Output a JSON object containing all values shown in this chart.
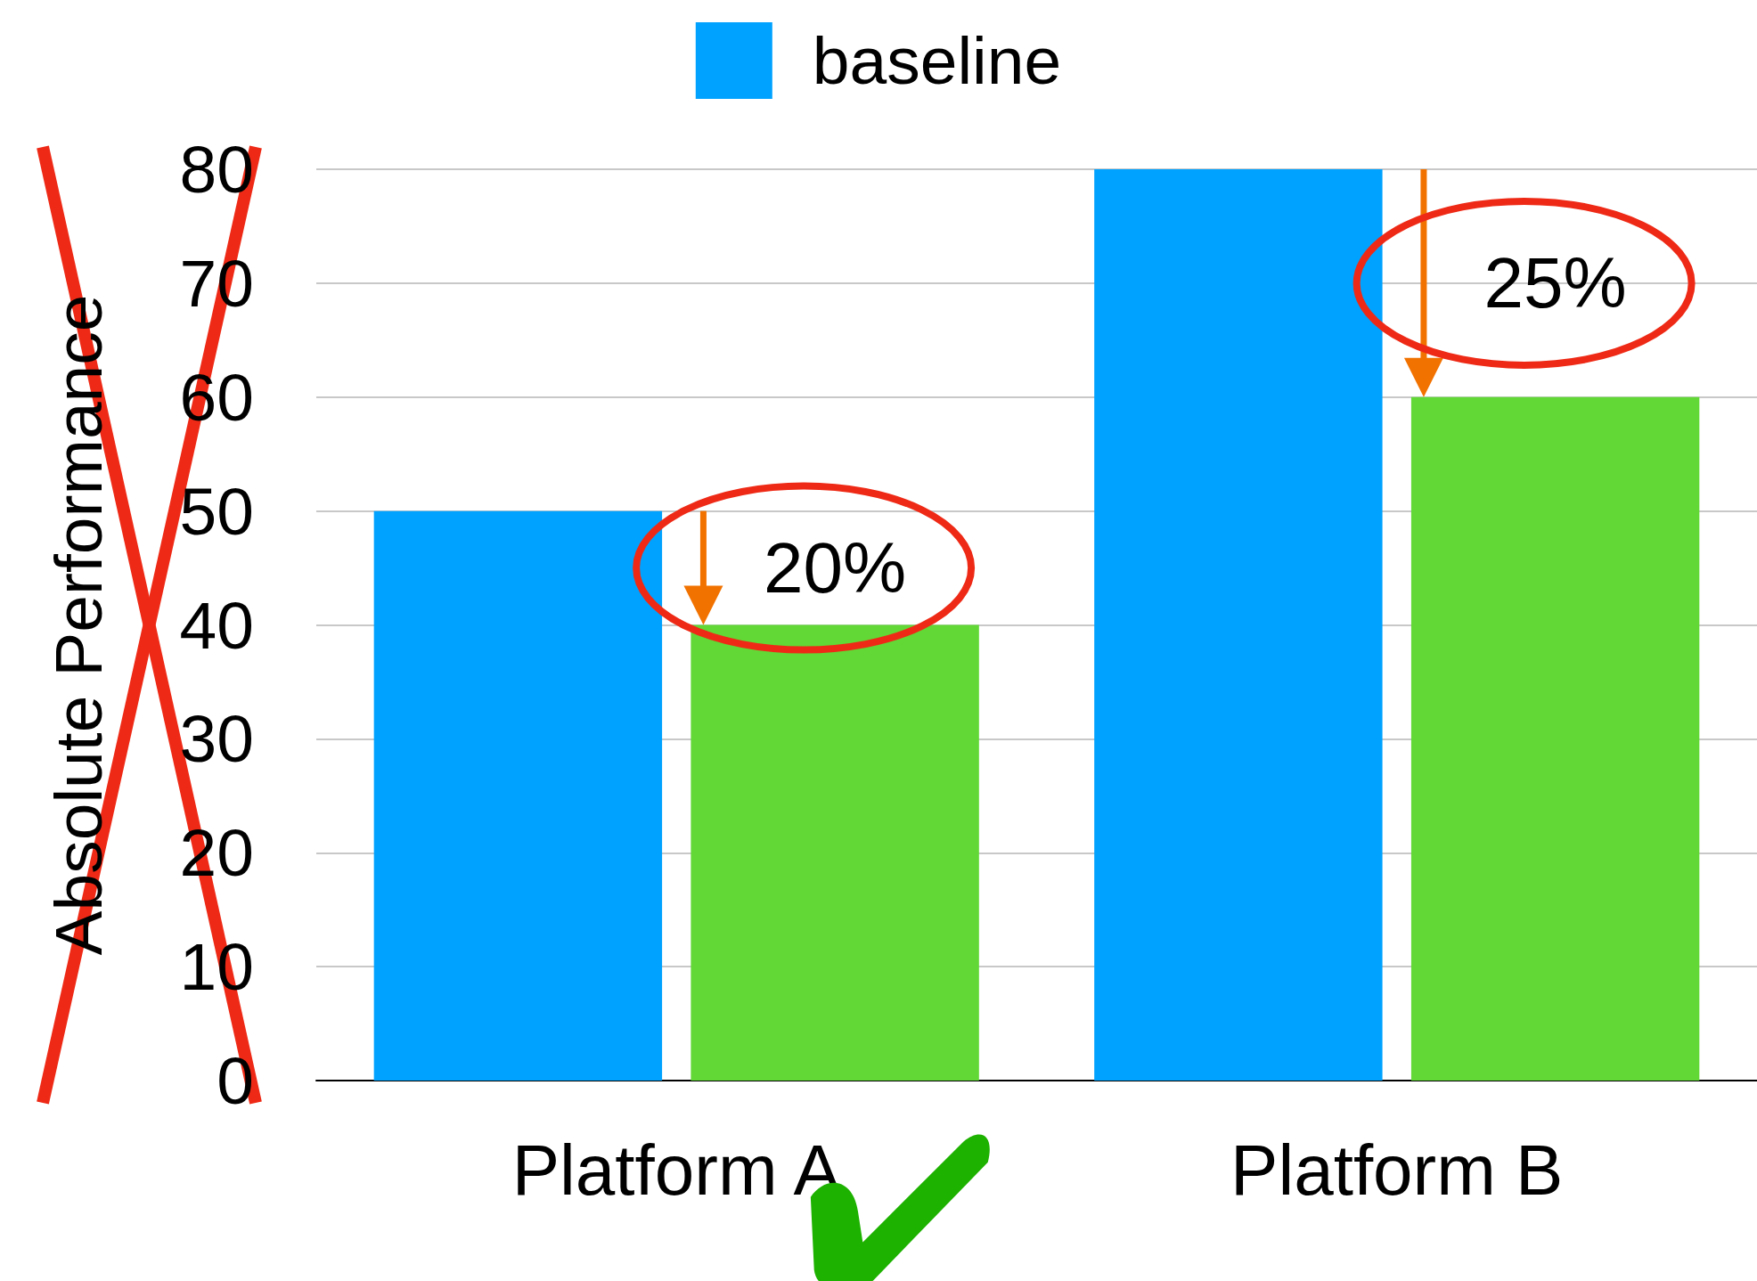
{
  "chart_data": {
    "type": "bar",
    "ylabel": "Absolute Performance",
    "categories": [
      "Platform A",
      "Platform B"
    ],
    "series": [
      {
        "name": "baseline",
        "color": "#00a2ff",
        "values": [
          50,
          80
        ]
      },
      {
        "color": "#61d836",
        "values": [
          40,
          60
        ]
      }
    ],
    "ylim": [
      0,
      80
    ],
    "yticks": [
      0,
      10,
      20,
      30,
      40,
      50,
      60,
      70,
      80
    ],
    "grid": "y",
    "legend": "top",
    "annotations": [
      "20%",
      "25%"
    ]
  }
}
